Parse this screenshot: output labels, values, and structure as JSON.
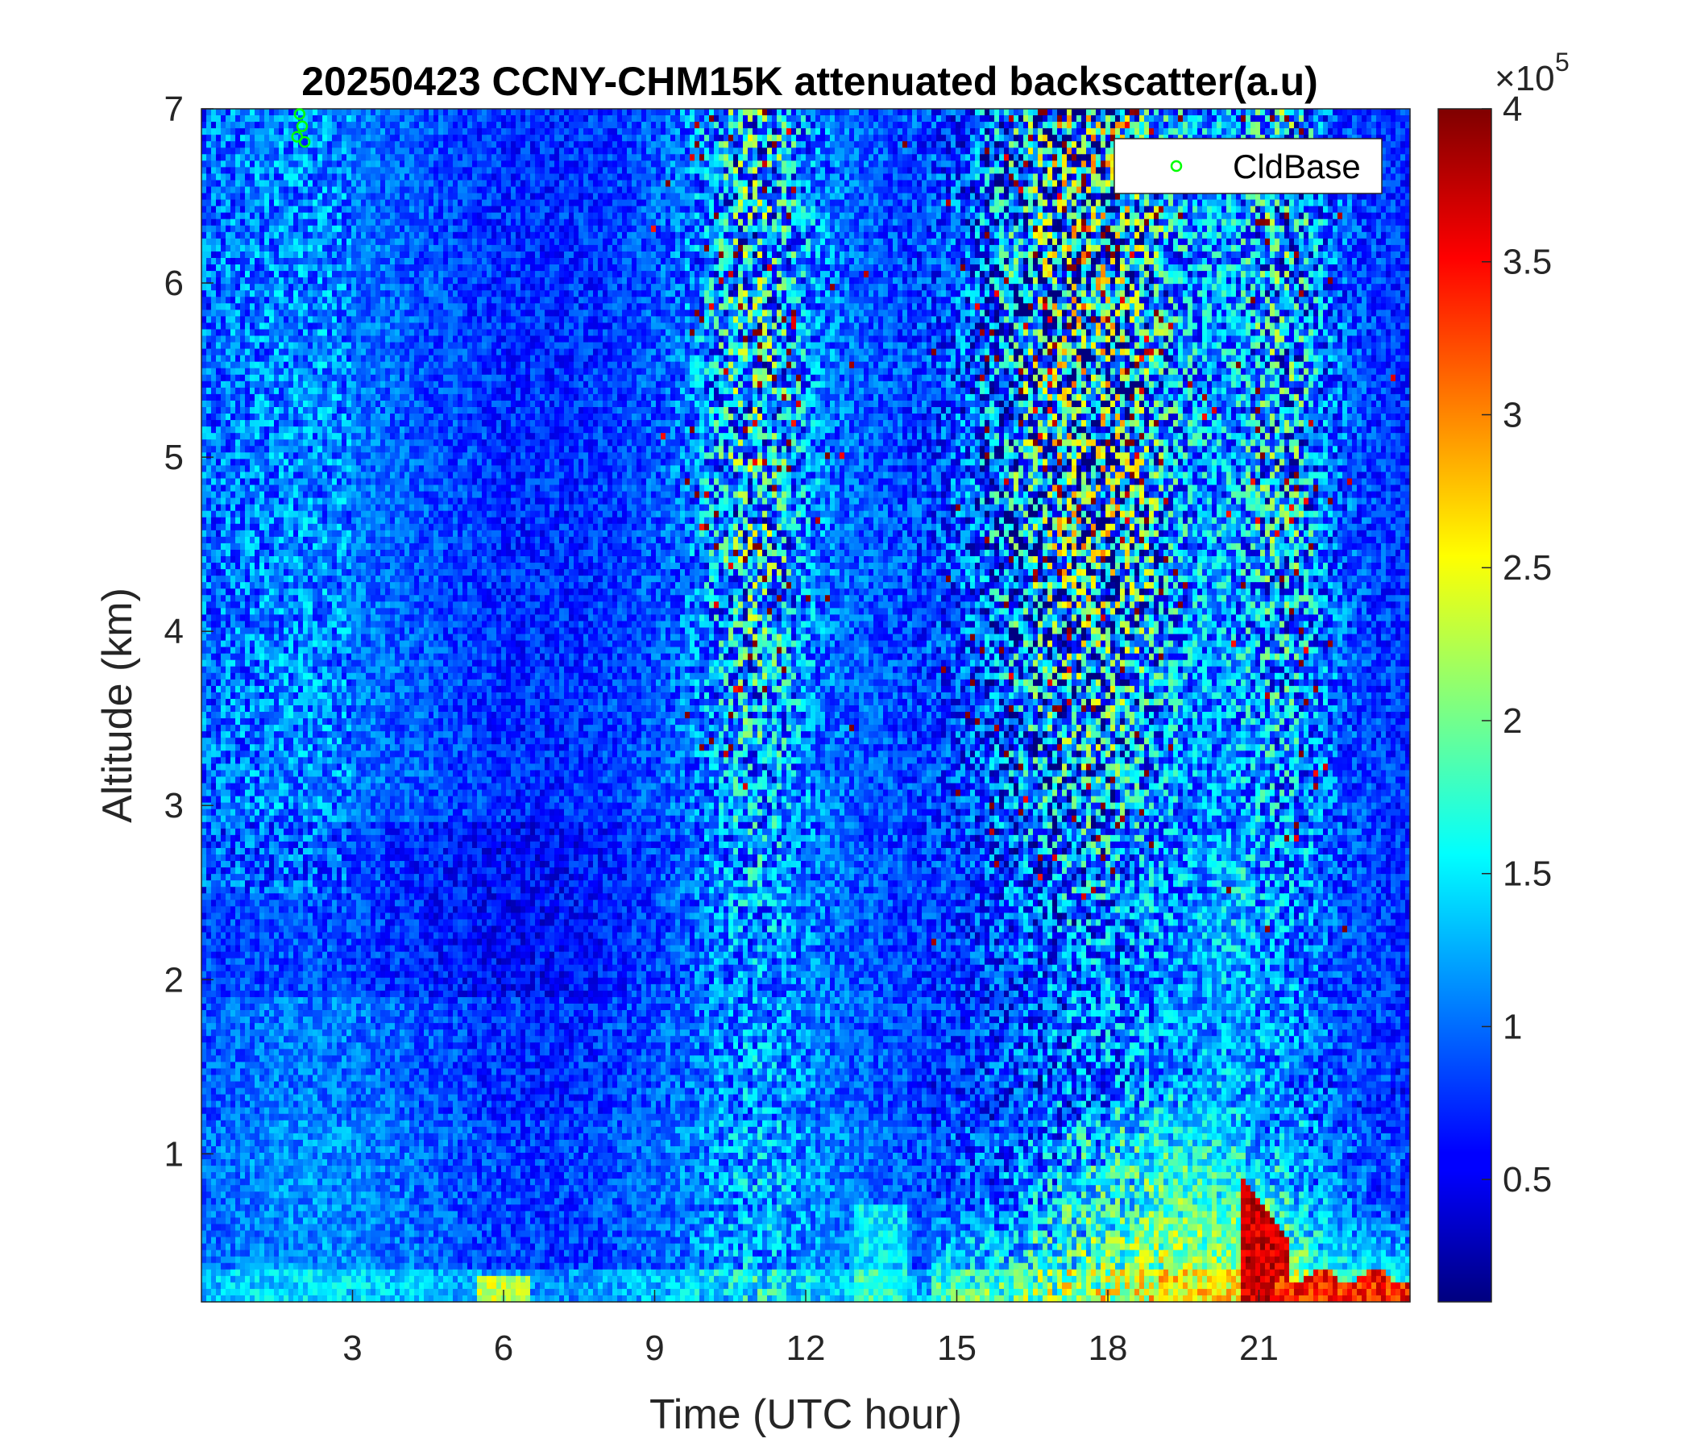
{
  "chart_data": {
    "type": "heatmap",
    "title": "20250423 CCNY-CHM15K attenuated backscatter(a.u)",
    "xlabel": "Time (UTC hour)",
    "ylabel": "Altitude (km)",
    "xlim": [
      0,
      24
    ],
    "ylim": [
      0.15,
      7
    ],
    "x_ticks": [
      3,
      6,
      9,
      12,
      15,
      18,
      21
    ],
    "x_tick_labels": [
      "3",
      "6",
      "9",
      "12",
      "15",
      "18",
      "21"
    ],
    "y_ticks": [
      1,
      2,
      3,
      4,
      5,
      6,
      7
    ],
    "y_tick_labels": [
      "1",
      "2",
      "3",
      "4",
      "5",
      "6",
      "7"
    ],
    "colormap": "jet",
    "colorbar": {
      "range": [
        0.1,
        4
      ],
      "ticks": [
        0.5,
        1,
        1.5,
        2,
        2.5,
        3,
        3.5,
        4
      ],
      "tick_labels": [
        "0.5",
        "1",
        "1.5",
        "2",
        "2.5",
        "3",
        "3.5",
        "4"
      ],
      "multiplier_base": "×10",
      "multiplier_exponent": "5"
    },
    "legend": {
      "position": "top-right",
      "entries": [
        {
          "label": "CldBase",
          "marker": "circle",
          "color": "#00ff00"
        }
      ]
    },
    "series": [
      {
        "name": "CldBase",
        "type": "scatter",
        "points": [
          {
            "x": 1.95,
            "y": 6.97
          },
          {
            "x": 2.0,
            "y": 6.9
          },
          {
            "x": 1.9,
            "y": 6.84
          },
          {
            "x": 2.05,
            "y": 6.81
          }
        ]
      }
    ],
    "grid": false
  }
}
